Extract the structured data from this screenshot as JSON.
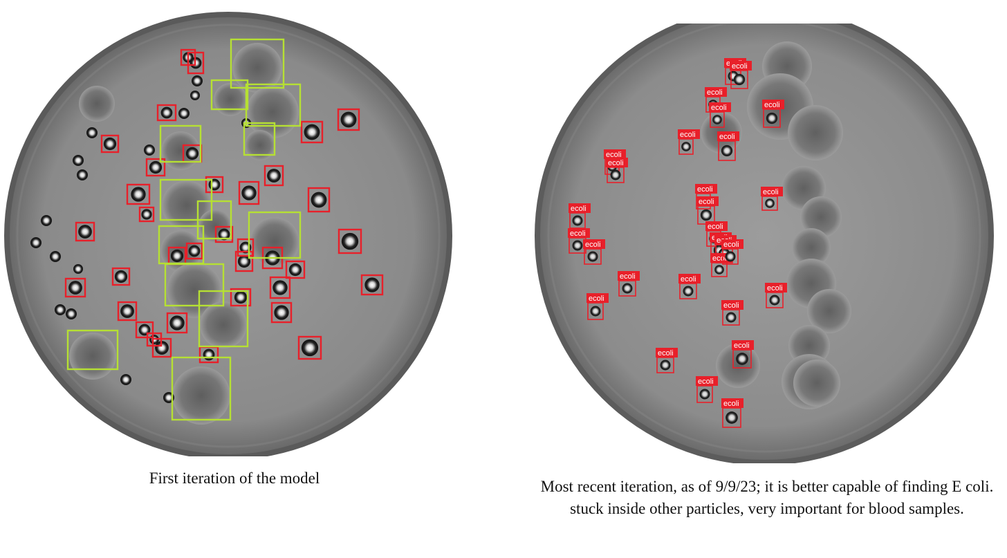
{
  "figure": {
    "left": {
      "caption": "First iteration of the model",
      "box_colors": {
        "ecoli": "#e8202a",
        "particle": "#b6e033"
      },
      "dish_color": "#8a8a8a"
    },
    "right": {
      "caption": "Most recent iteration, as of 9/9/23; it is better capable of finding E coli. stuck inside other particles, very important for blood samples.",
      "detection_label": "ecoli",
      "box_color": "#e8202a",
      "label_bg": "#e8202a",
      "dish_color": "#8c8c8c"
    }
  }
}
